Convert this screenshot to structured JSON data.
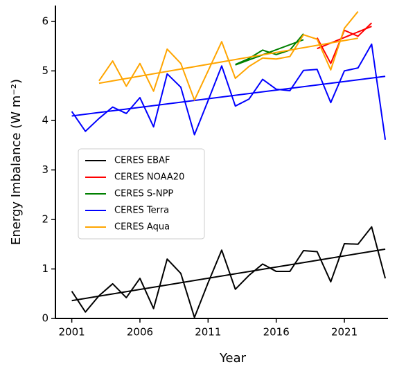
{
  "chart_data": {
    "type": "line",
    "x_label": "Year",
    "y_label": "Energy Imbalance (W m⁻²)",
    "x": [
      2001,
      2002,
      2003,
      2004,
      2005,
      2006,
      2007,
      2008,
      2009,
      2010,
      2011,
      2012,
      2013,
      2014,
      2015,
      2016,
      2017,
      2018,
      2019,
      2020,
      2021,
      2022,
      2023,
      2024
    ],
    "series": [
      {
        "name": "CERES EBAF",
        "color": "#000000",
        "values": [
          0.55,
          0.13,
          0.46,
          0.7,
          0.42,
          0.81,
          0.2,
          1.2,
          0.91,
          0.02,
          0.72,
          1.38,
          0.59,
          0.87,
          1.1,
          0.95,
          0.95,
          1.37,
          1.35,
          0.74,
          1.51,
          1.5,
          1.85,
          0.81
        ],
        "trend": {
          "x": [
            2001,
            2024
          ],
          "values": [
            0.36,
            1.4
          ]
        }
      },
      {
        "name": "CERES NOAA20",
        "color": "#ff0000",
        "values": [
          null,
          null,
          null,
          null,
          null,
          null,
          null,
          null,
          null,
          null,
          null,
          null,
          null,
          null,
          null,
          null,
          null,
          null,
          5.67,
          5.15,
          5.82,
          5.7,
          5.97,
          null
        ],
        "trend": {
          "x": [
            2019,
            2023
          ],
          "values": [
            5.45,
            5.9
          ]
        }
      },
      {
        "name": "CERES S-NPP",
        "color": "#008000",
        "values": [
          null,
          null,
          null,
          null,
          null,
          null,
          null,
          null,
          null,
          null,
          null,
          null,
          5.13,
          5.25,
          5.42,
          5.33,
          5.42,
          5.75,
          null,
          null,
          null,
          null,
          null,
          null
        ],
        "trend": {
          "x": [
            2013,
            2018
          ],
          "values": [
            5.12,
            5.63
          ]
        }
      },
      {
        "name": "CERES Terra",
        "color": "#0000ff",
        "values": [
          4.18,
          3.78,
          4.04,
          4.27,
          4.14,
          4.46,
          3.87,
          4.94,
          4.67,
          3.71,
          4.4,
          5.1,
          4.29,
          4.43,
          4.83,
          4.63,
          4.6,
          5.01,
          5.03,
          4.36,
          5.0,
          5.06,
          5.54,
          3.61
        ],
        "trend": {
          "x": [
            2001,
            2024
          ],
          "values": [
            4.09,
            4.89
          ]
        }
      },
      {
        "name": "CERES Aqua",
        "color": "#ffa500",
        "values": [
          null,
          null,
          4.8,
          5.2,
          4.69,
          5.15,
          4.59,
          5.44,
          5.15,
          4.41,
          5.0,
          5.59,
          4.85,
          5.09,
          5.26,
          5.24,
          5.29,
          5.73,
          5.64,
          5.02,
          5.86,
          6.2,
          null,
          null
        ],
        "trend": {
          "x": [
            2003,
            2022
          ],
          "values": [
            4.75,
            5.66
          ]
        }
      }
    ],
    "xlim": [
      1999.8,
      2024.2
    ],
    "xticks": [
      2001,
      2006,
      2011,
      2016,
      2021
    ],
    "ylim": [
      0,
      6.32
    ],
    "yticks": [
      0,
      1,
      2,
      3,
      4,
      5,
      6
    ],
    "legend_loc": "center left",
    "grid": false
  }
}
